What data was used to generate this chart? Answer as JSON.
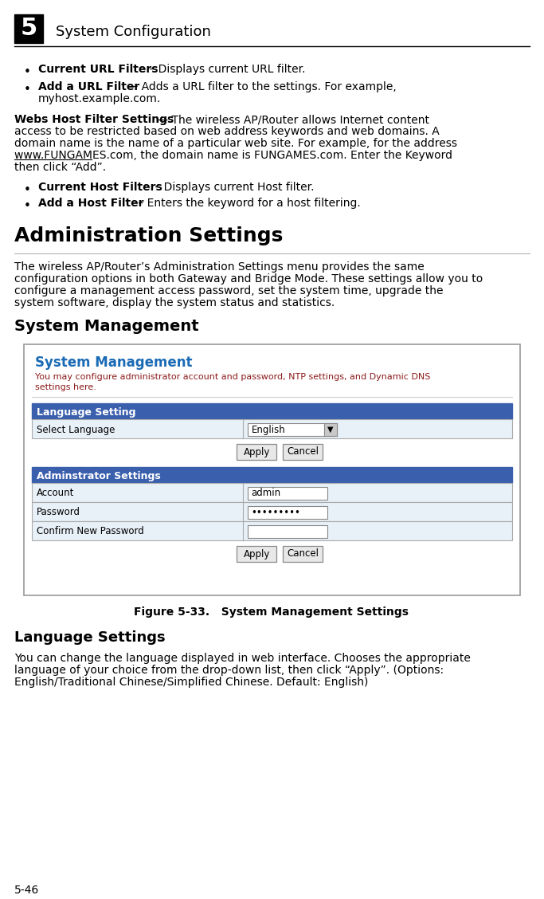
{
  "bg_color": "#ffffff",
  "header_num": "5",
  "header_text": "System Configuration",
  "bullet_items": [
    {
      "bold": "Current URL Filters",
      "rest": " – Displays current URL filter."
    },
    {
      "bold": "Add a URL Filter",
      "rest": " – Adds a URL filter to the settings. For example,\nmyhost.example.com."
    }
  ],
  "webs_host_bold": "Webs Host Filter Settings",
  "webs_host_first_line": " — The wireless AP/Router allows Internet content",
  "webs_host_lines": [
    "access to be restricted based on web address keywords and web domains. A",
    "domain name is the name of a particular web site. For example, for the address",
    "www.FUNGAMES.com, the domain name is FUNGAMES.com. Enter the Keyword",
    "then click “Add”."
  ],
  "bullet_items2": [
    {
      "bold": "Current Host Filters",
      "rest": " – Displays current Host filter."
    },
    {
      "bold": "Add a Host Filter",
      "rest": " – Enters the keyword for a host filtering."
    }
  ],
  "admin_heading": "Administration Settings",
  "admin_lines": [
    "The wireless AP/Router’s Administration Settings menu provides the same",
    "configuration options in both Gateway and Bridge Mode. These settings allow you to",
    "configure a management access password, set the system time, upgrade the",
    "system software, display the system status and statistics."
  ],
  "sys_mgmt_heading": "System Management",
  "figure_caption": "Figure 5-33.   System Management Settings",
  "lang_settings_heading": "Language Settings",
  "lang_settings_lines": [
    "You can change the language displayed in web interface. Chooses the appropriate",
    "language of your choice from the drop-down list, then click “Apply”. (Options:",
    "English/Traditional Chinese/Simplified Chinese. Default: English)"
  ],
  "page_num": "5-46",
  "ui_title": "System Management",
  "ui_subtitle_lines": [
    "You may configure administrator account and password, NTP settings, and Dynamic DNS",
    "settings here."
  ],
  "ui_blue_header1": "Language Setting",
  "ui_row1_label": "Select Language",
  "ui_row1_value": "English",
  "ui_blue_header2": "Adminstrator Settings",
  "ui_row2_label": "Account",
  "ui_row2_value": "admin",
  "ui_row3_label": "Password",
  "ui_row3_value": "•••••••••",
  "ui_row4_label": "Confirm New Password",
  "ui_row4_value": "",
  "colors": {
    "blue_header": "#3a5fad",
    "ui_title_blue": "#1a6ab5",
    "ui_subtitle_color": "#8b1a1a",
    "ui_border": "#999999",
    "ui_row_bg_light": "#e8f0f8",
    "button_border": "#888888",
    "button_bg": "#e8e8e8"
  }
}
